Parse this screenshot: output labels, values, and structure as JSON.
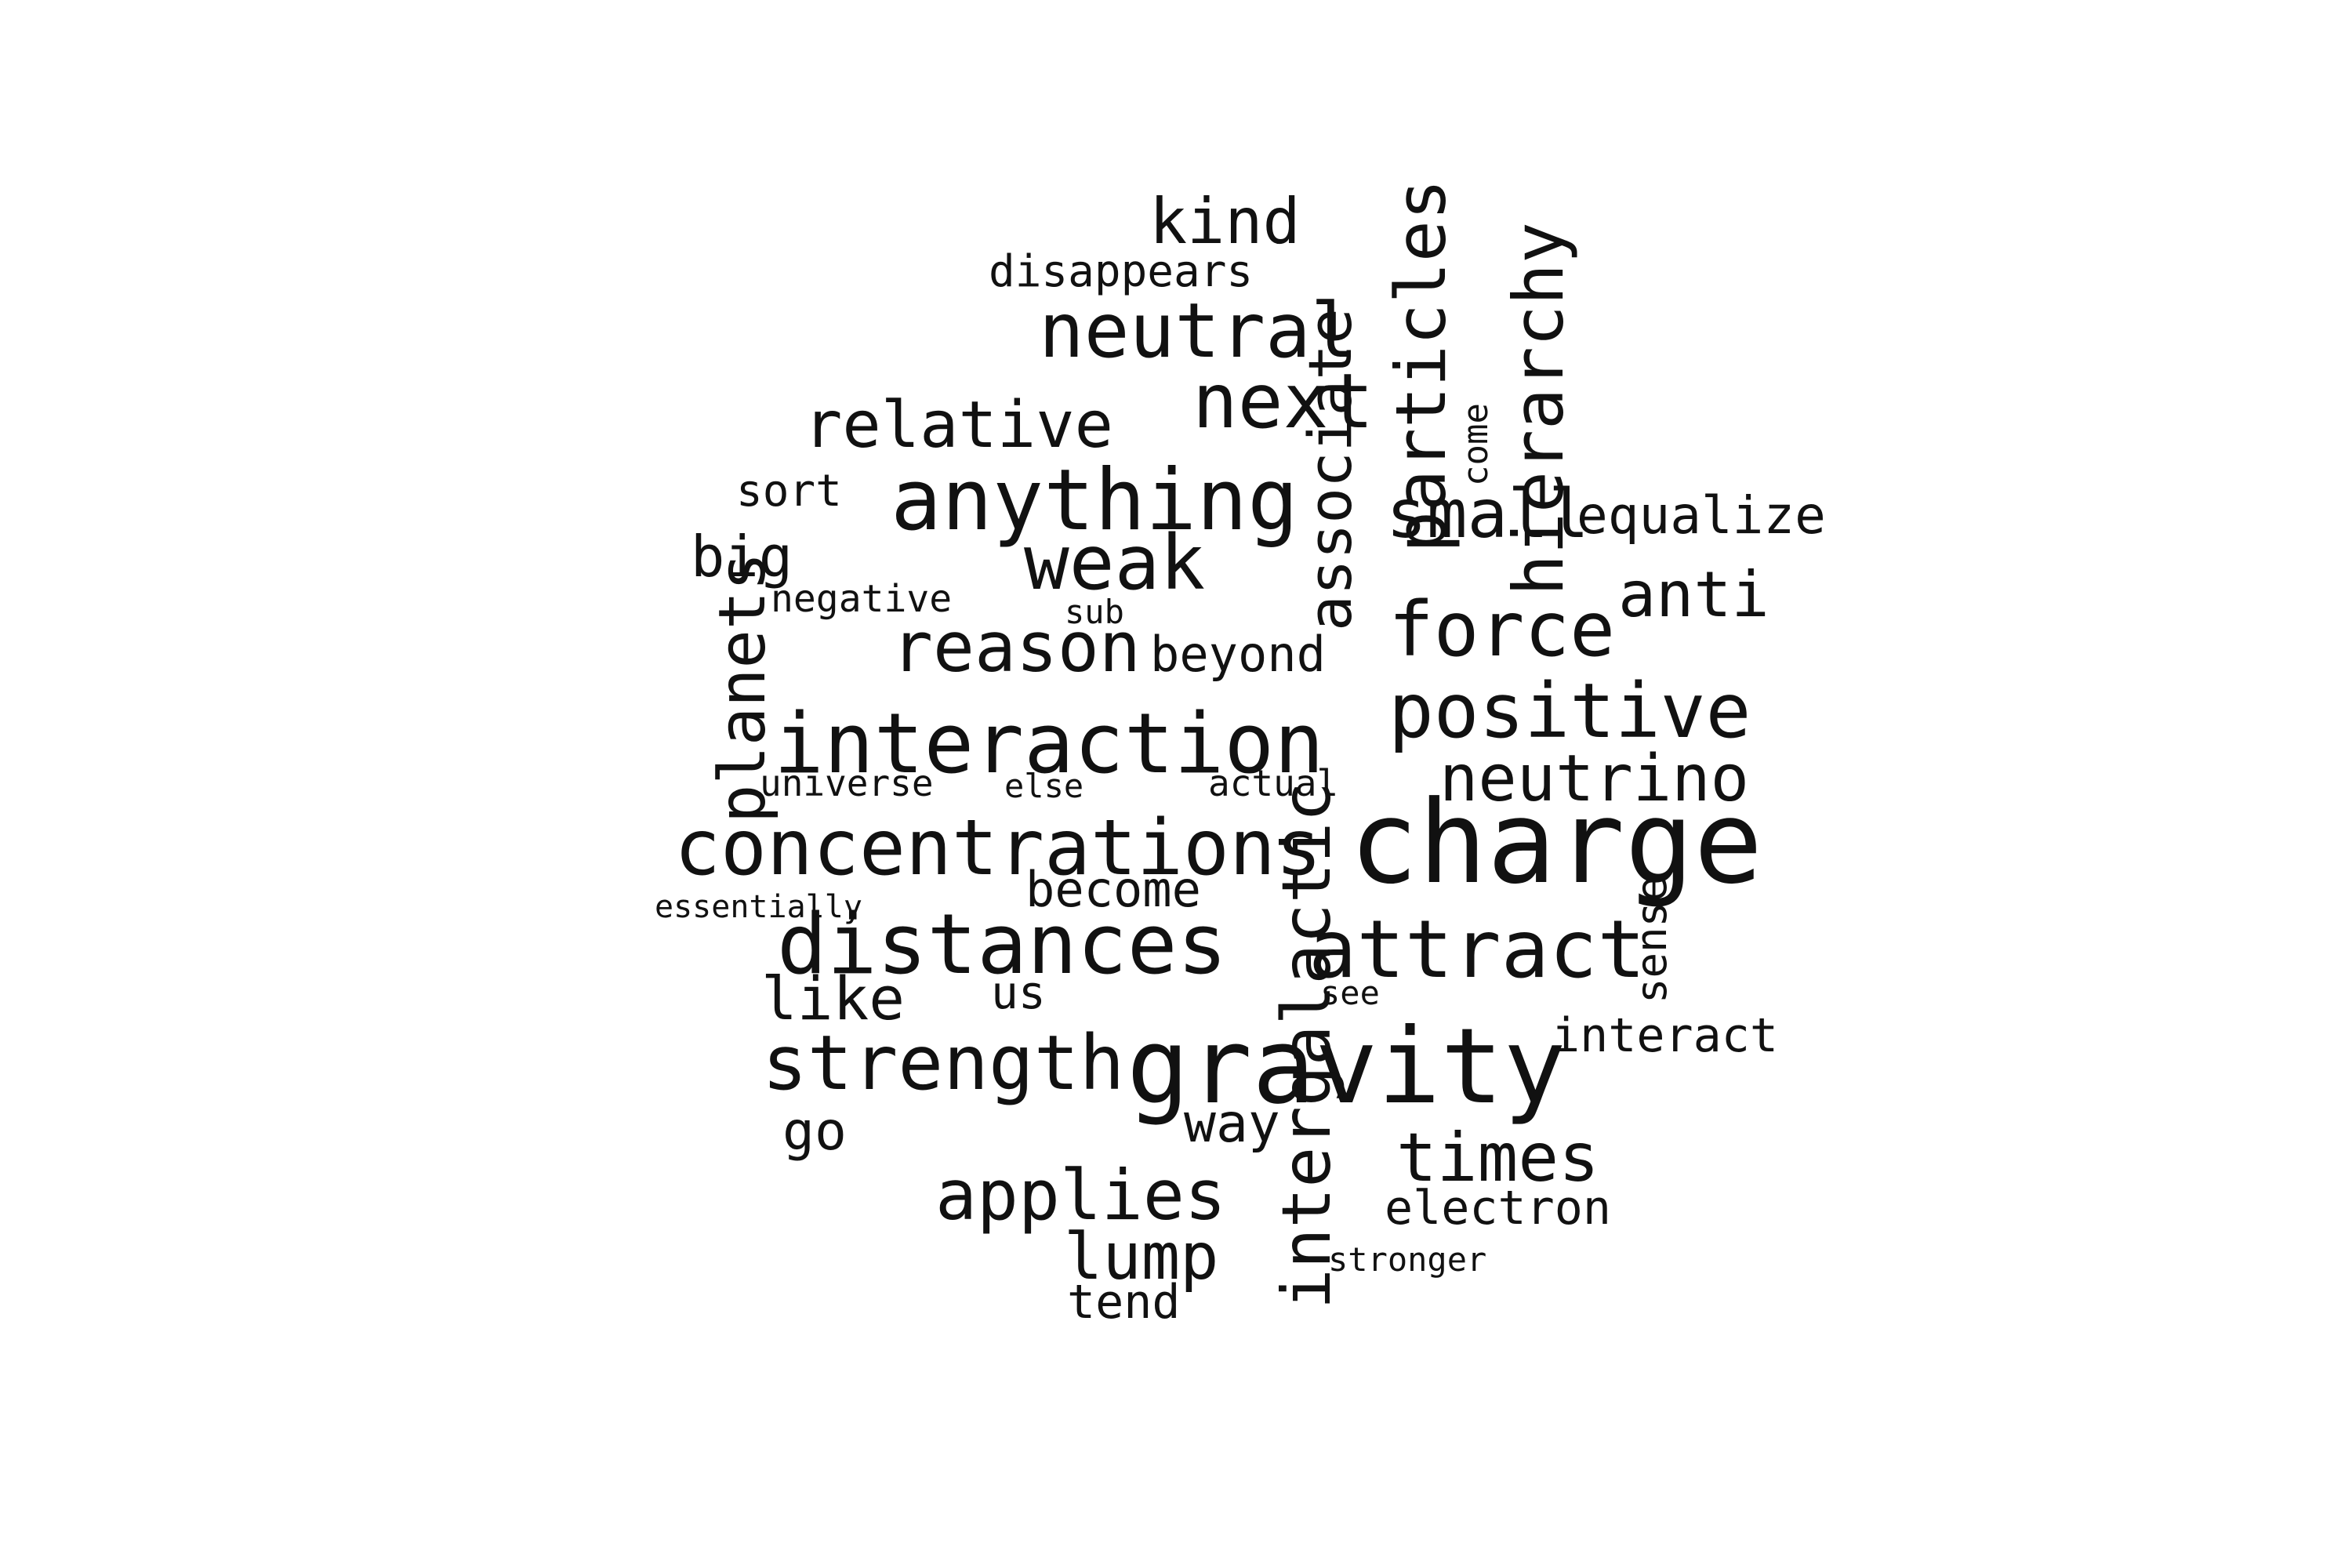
{
  "words": [
    "charge",
    "gravity",
    "interaction",
    "concentrations",
    "distances",
    "anything",
    "positive",
    "attract",
    "neutral",
    "strength",
    "next",
    "weak",
    "force",
    "reason",
    "neutrino",
    "relative",
    "applies",
    "times",
    "lump",
    "small",
    "kind",
    "anti",
    "like",
    "big",
    "go",
    "way",
    "us",
    "become",
    "equalize",
    "interact",
    "beyond",
    "disappears",
    "electron",
    "tend",
    "sort",
    "negative",
    "universe",
    "actual",
    "else",
    "sub",
    "see",
    "stronger",
    "essentially",
    "particles",
    "hierarchy",
    "planets",
    "associate",
    "intergalactic",
    "sense",
    "come"
  ]
}
